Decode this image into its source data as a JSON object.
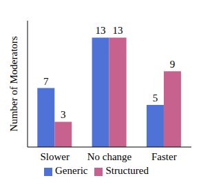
{
  "chart_data": {
    "type": "bar",
    "categories": [
      "Slower",
      "No change",
      "Faster"
    ],
    "y_label": "Number of Moderators",
    "series": [
      {
        "name": "Generic",
        "color": "#4f72d6",
        "values": [
          7,
          13,
          5
        ]
      },
      {
        "name": "Structured",
        "color": "#c7628f",
        "values": [
          3,
          13,
          9
        ]
      }
    ],
    "ylim": [
      0,
      15
    ],
    "data_labels": true,
    "legend": "bottom",
    "tick_labels": "x",
    "grid": false
  }
}
